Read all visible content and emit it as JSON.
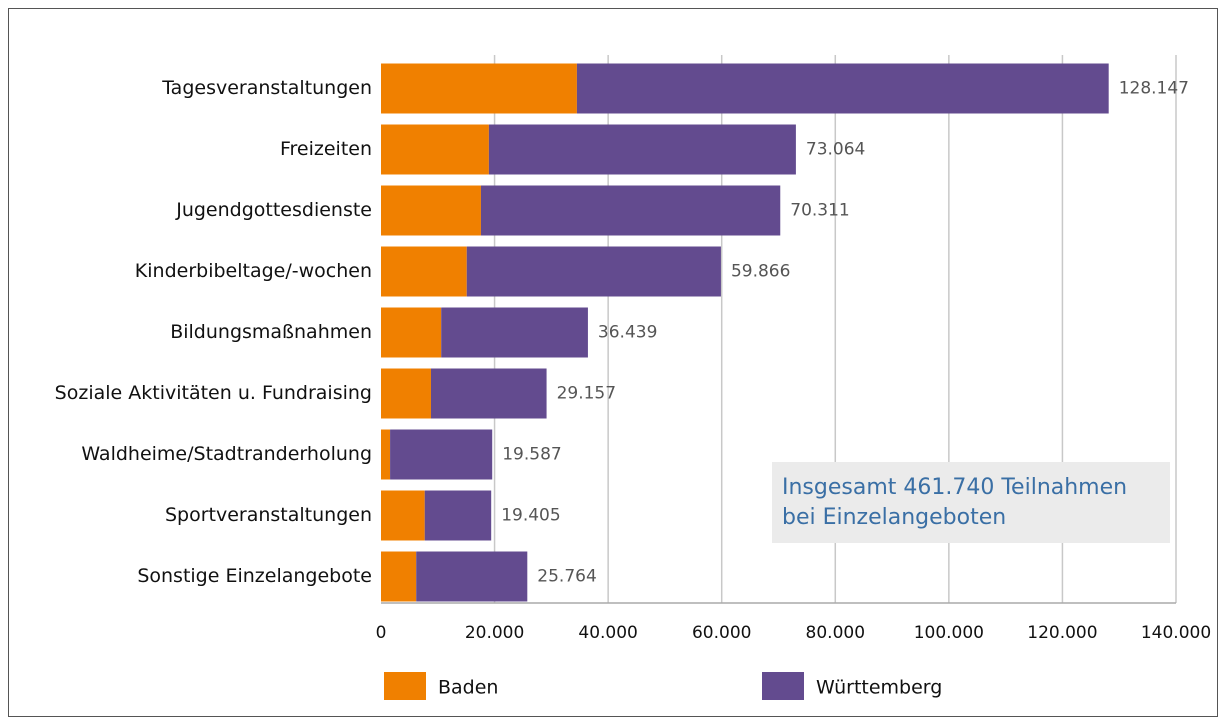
{
  "chart_data": {
    "type": "bar",
    "orientation": "horizontal",
    "stacked": true,
    "categories": [
      "Tagesveranstaltungen",
      "Freizeiten",
      "Jugendgottesdienste",
      "Kinderbibeltage/-wochen",
      "Bildungsmaßnahmen",
      "Soziale Aktivitäten u. Fundraising",
      "Waldheime/Stadtranderholung",
      "Sportveranstaltungen",
      "Sonstige Einzelangebote"
    ],
    "series": [
      {
        "name": "Baden",
        "color": "#f08000",
        "values": [
          34500,
          19000,
          17600,
          15100,
          10600,
          8800,
          1600,
          7700,
          6200
        ]
      },
      {
        "name": "Württemberg",
        "color": "#634b8f",
        "values": [
          93647,
          54064,
          52711,
          44766,
          25839,
          20357,
          17987,
          11705,
          19564
        ]
      }
    ],
    "totals": [
      128147,
      73064,
      70311,
      59866,
      36439,
      29157,
      19587,
      19405,
      25764
    ],
    "value_labels": [
      "128.147",
      "73.064",
      "70.311",
      "59.866",
      "36.439",
      "29.157",
      "19.587",
      "19.405",
      "25.764"
    ],
    "xlim": [
      0,
      140000
    ],
    "xticks": [
      0,
      {
        "value": 20000,
        "label": "20.000"
      },
      {
        "value": 40000,
        "label": "40.000"
      },
      {
        "value": 60000,
        "label": "60.000"
      },
      {
        "value": 80000,
        "label": "80.000"
      },
      {
        "value": 100000,
        "label": "100.000"
      },
      {
        "value": 120000,
        "label": "120.000"
      },
      {
        "value": 140000,
        "label": "140.000"
      }
    ],
    "grid": true,
    "legend": "bottom",
    "annotation": [
      "Insgesamt 461.740 Teilnahmen",
      "bei Einzelangeboten"
    ]
  }
}
